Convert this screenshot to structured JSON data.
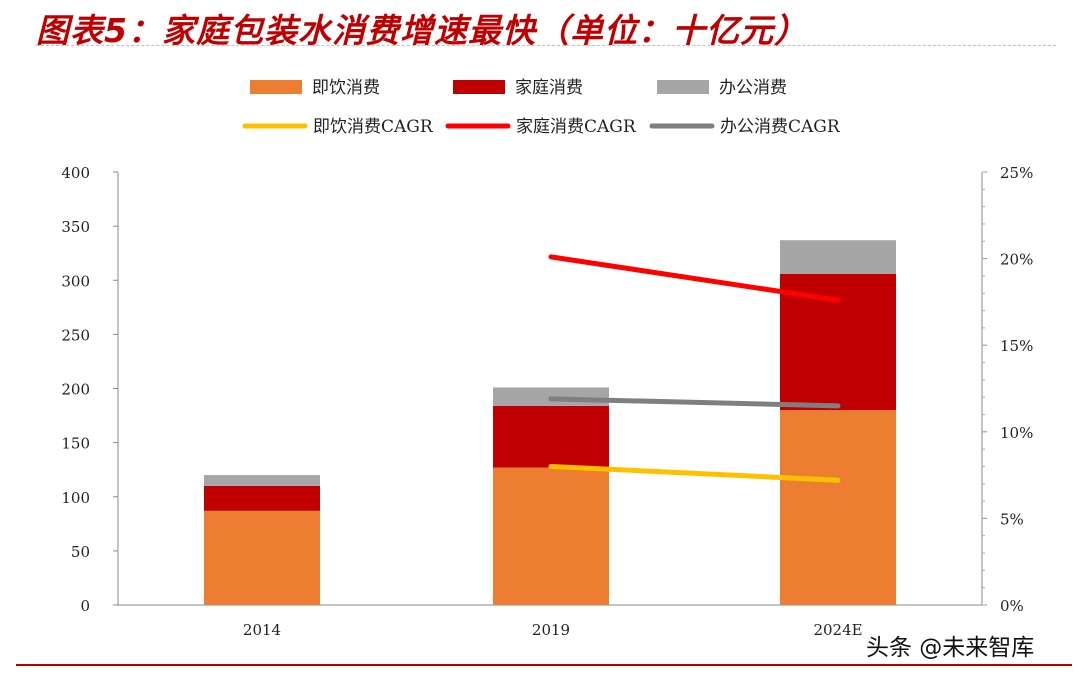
{
  "title": "图表5：家庭包装水消费增速最快（单位：十亿元）",
  "watermark": "头条 @未来智库",
  "chart_data": {
    "type": "bar",
    "stacked": true,
    "categories": [
      "2014",
      "2019",
      "2024E"
    ],
    "series": [
      {
        "name": "即饮消费",
        "type": "bar",
        "axis": "left",
        "color": "#ed7d31",
        "values": [
          87,
          127,
          180
        ]
      },
      {
        "name": "家庭消费",
        "type": "bar",
        "axis": "left",
        "color": "#c00000",
        "values": [
          23,
          57,
          126
        ]
      },
      {
        "name": "办公消费",
        "type": "bar",
        "axis": "left",
        "color": "#a6a6a6",
        "values": [
          10,
          17,
          31
        ]
      },
      {
        "name": "即饮消费CAGR",
        "type": "line",
        "axis": "right",
        "color": "#ffc000",
        "x": [
          "2019",
          "2024E"
        ],
        "values": [
          8.0,
          7.2
        ]
      },
      {
        "name": "家庭消费CAGR",
        "type": "line",
        "axis": "right",
        "color": "#ff0000",
        "x": [
          "2019",
          "2024E"
        ],
        "values": [
          20.1,
          17.6
        ]
      },
      {
        "name": "办公消费CAGR",
        "type": "line",
        "axis": "right",
        "color": "#7f7f7f",
        "x": [
          "2019",
          "2024E"
        ],
        "values": [
          11.9,
          11.5
        ]
      }
    ],
    "y_left": {
      "min": 0,
      "max": 400,
      "ticks": [
        "0",
        "50",
        "100",
        "150",
        "200",
        "250",
        "300",
        "350",
        "400"
      ]
    },
    "y_right": {
      "min": 0,
      "max": 25,
      "ticks": [
        "0%",
        "5%",
        "10%",
        "15%",
        "20%",
        "25%"
      ]
    },
    "legend_position": "top",
    "grid": false
  }
}
